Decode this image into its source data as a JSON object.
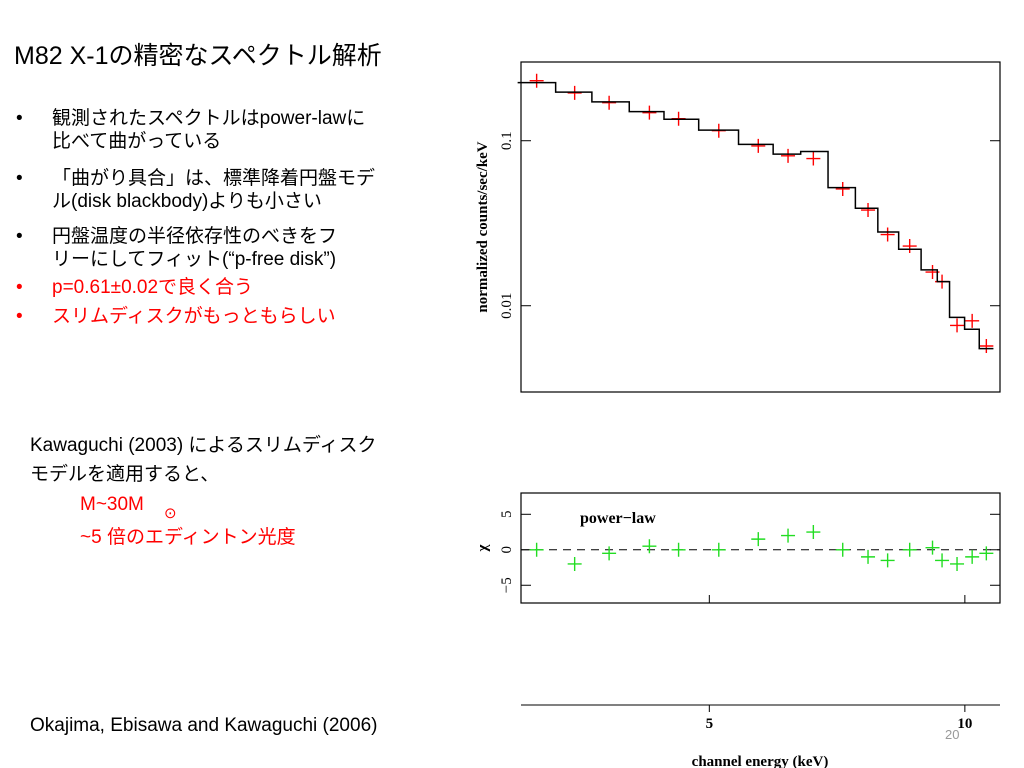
{
  "slide": {
    "title": "M82 X-1の精密なスペクトル解析",
    "bullets": [
      {
        "lines": [
          "観測されたスペクトルはpower-lawに",
          "比べて曲がっている"
        ],
        "color": "#000000"
      },
      {
        "lines": [
          "「曲がり具合」は、標準降着円盤モデ",
          "ル(disk blackbody)よりも小さい"
        ],
        "color": "#000000"
      },
      {
        "lines": [
          "円盤温度の半径依存性のべきをフ",
          "リーにしてフィット(“p-free disk”)"
        ],
        "color": "#000000"
      },
      {
        "lines": [
          "p=0.61±0.02で良く合う"
        ],
        "color": "#ff0000"
      },
      {
        "lines": [
          "スリムディスクがもっともらしい"
        ],
        "color": "#ff0000"
      }
    ],
    "note": {
      "lines": [
        "Kawaguchi (2003) によるスリムディスク",
        "モデルを適用すると、"
      ],
      "mass": "M~30M",
      "mass_sub": "⊙",
      "luminosity": "~5 倍のエディントン光度",
      "color": "#ff0000"
    },
    "citation": "Okajima, Ebisawa and Kawaguchi (2006)",
    "page": "20"
  },
  "chart_data": [
    {
      "type": "step-scatter",
      "ylabel": "normalized counts/sec/keV",
      "x": [
        3.13,
        3.47,
        3.81,
        4.25,
        4.6,
        5.13,
        5.71,
        6.19,
        6.63,
        7.18,
        7.69,
        8.11,
        8.61,
        9.16,
        9.4,
        9.79,
        10.2,
        10.6
      ],
      "series": [
        {
          "color": "#ff0000",
          "style": "points",
          "values": [
            0.231,
            0.195,
            0.17,
            0.148,
            0.136,
            0.115,
            0.093,
            0.081,
            0.078,
            0.051,
            0.038,
            0.027,
            0.023,
            0.016,
            0.014,
            0.0076,
            0.0081,
            0.0057
          ]
        },
        {
          "color": "#000000",
          "style": "step",
          "values": [
            0.225,
            0.197,
            0.172,
            0.15,
            0.135,
            0.116,
            0.095,
            0.083,
            0.086,
            0.052,
            0.039,
            0.028,
            0.022,
            0.0165,
            0.014,
            0.0085,
            0.0072,
            0.0055
          ]
        }
      ],
      "xlim": [
        3,
        11
      ],
      "ylim": [
        0.003,
        0.3
      ],
      "yticks": [
        0.01,
        0.1
      ],
      "log_x": true,
      "log_y": true
    },
    {
      "type": "scatter",
      "ylabel": "χ",
      "xlabel": "channel energy (keV)",
      "annotation": "power−law",
      "x": [
        3.13,
        3.47,
        3.81,
        4.25,
        4.6,
        5.13,
        5.71,
        6.19,
        6.63,
        7.18,
        7.69,
        8.11,
        8.61,
        9.16,
        9.4,
        9.79,
        10.2,
        10.6
      ],
      "series": [
        {
          "color": "#22dd22",
          "values": [
            0,
            -2,
            -0.5,
            0.5,
            0,
            0,
            1.5,
            2,
            2.5,
            0,
            -1,
            -1.5,
            0,
            0.3,
            -1.5,
            -2,
            -1,
            -0.5
          ]
        }
      ],
      "xlim": [
        3,
        11
      ],
      "ylim": [
        -7.5,
        8
      ],
      "log_x": true,
      "xticks": [
        5,
        10
      ],
      "yticks": [
        {
          "value": -5,
          "label": "−5"
        },
        0,
        5
      ]
    }
  ]
}
